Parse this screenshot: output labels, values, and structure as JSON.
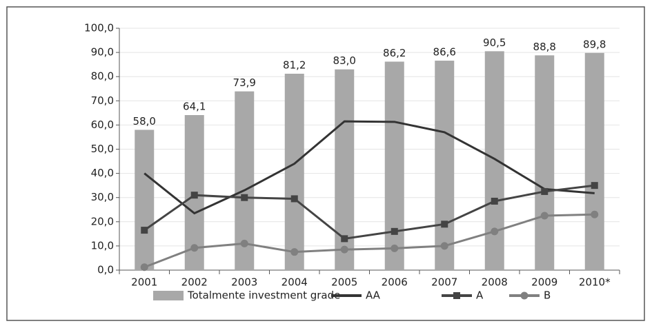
{
  "chart_data": {
    "type": "bar",
    "categories": [
      "2001",
      "2002",
      "2003",
      "2004",
      "2005",
      "2006",
      "2007",
      "2008",
      "2009",
      "2010*"
    ],
    "series": [
      {
        "name": "Totalmente investment grade",
        "type": "bar",
        "color": "#a8a8a8",
        "values": [
          58.0,
          64.1,
          73.9,
          81.2,
          83.0,
          86.2,
          86.6,
          90.5,
          88.8,
          89.8
        ],
        "value_labels": [
          "58,0",
          "64,1",
          "73,9",
          "81,2",
          "83,0",
          "86,2",
          "86,6",
          "90,5",
          "88,8",
          "89,8"
        ]
      },
      {
        "name": "AA",
        "type": "line",
        "marker": "none",
        "color": "#333333",
        "values": [
          40,
          23.5,
          33,
          44,
          61.5,
          61.3,
          57,
          46,
          33.5,
          31.8
        ]
      },
      {
        "name": "A",
        "type": "line",
        "marker": "square",
        "color": "#444444",
        "values": [
          16.5,
          31,
          30,
          29.5,
          13,
          16,
          19,
          28.5,
          32.5,
          35
        ]
      },
      {
        "name": "B",
        "type": "line",
        "marker": "circle",
        "color": "#808080",
        "values": [
          1.2,
          9.2,
          11,
          7.5,
          8.5,
          9,
          10,
          16,
          22.5,
          23
        ]
      }
    ],
    "ylim": [
      0,
      100
    ],
    "yticks": [
      {
        "value": 0,
        "label": "0,0"
      },
      {
        "value": 10,
        "label": "10,0"
      },
      {
        "value": 20,
        "label": "20,0"
      },
      {
        "value": 30,
        "label": "30,0"
      },
      {
        "value": 40,
        "label": "40,0"
      },
      {
        "value": 50,
        "label": "50,0"
      },
      {
        "value": 60,
        "label": "60,0"
      },
      {
        "value": 70,
        "label": "70,0"
      },
      {
        "value": 80,
        "label": "80,0"
      },
      {
        "value": 90,
        "label": "90,0"
      },
      {
        "value": 100,
        "label": "100,0"
      }
    ],
    "grid": true,
    "legend": "bottom"
  }
}
